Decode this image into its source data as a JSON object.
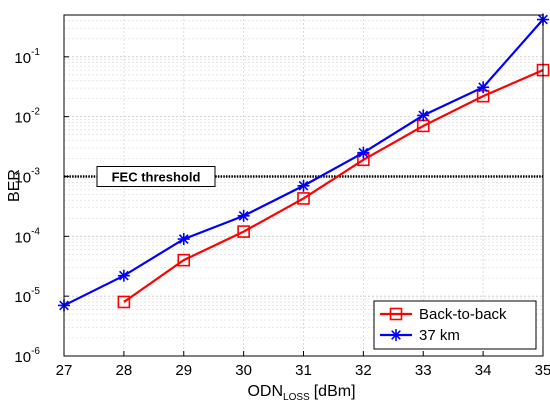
{
  "chart_data": {
    "type": "line",
    "xlabel": "ODN",
    "xlabel_sub": "LOSS",
    "xlabel_unit": "[dBm]",
    "ylabel": "BER",
    "xlim": [
      27,
      35
    ],
    "ylim": [
      1e-06,
      0.5
    ],
    "yscale": "log",
    "grid": true,
    "legend_position": "bottom-right",
    "x_ticks": [
      27,
      28,
      29,
      30,
      31,
      32,
      33,
      34,
      35
    ],
    "y_ticks": [
      {
        "value": 1e-06,
        "base": "10",
        "exp": "-6"
      },
      {
        "value": 1e-05,
        "base": "10",
        "exp": "-5"
      },
      {
        "value": 0.0001,
        "base": "10",
        "exp": "-4"
      },
      {
        "value": 0.001,
        "base": "10",
        "exp": "-3"
      },
      {
        "value": 0.01,
        "base": "10",
        "exp": "-2"
      },
      {
        "value": 0.1,
        "base": "10",
        "exp": "-1"
      }
    ],
    "threshold": {
      "label": "FEC threshold",
      "value": 0.001
    },
    "series": [
      {
        "name": "Back-to-back",
        "color": "#ff0000",
        "marker": "square",
        "x": [
          28,
          29,
          30,
          31,
          32,
          33,
          34,
          35
        ],
        "y": [
          8e-06,
          4e-05,
          0.00012,
          0.00043,
          0.0019,
          0.007,
          0.022,
          0.06
        ]
      },
      {
        "name": "37 km",
        "color": "#0000ff",
        "marker": "star",
        "x": [
          27,
          28,
          29,
          30,
          31,
          32,
          33,
          34,
          35
        ],
        "y": [
          7e-06,
          2.2e-05,
          9e-05,
          0.00022,
          0.0007,
          0.0025,
          0.0105,
          0.031,
          0.42
        ]
      }
    ]
  }
}
